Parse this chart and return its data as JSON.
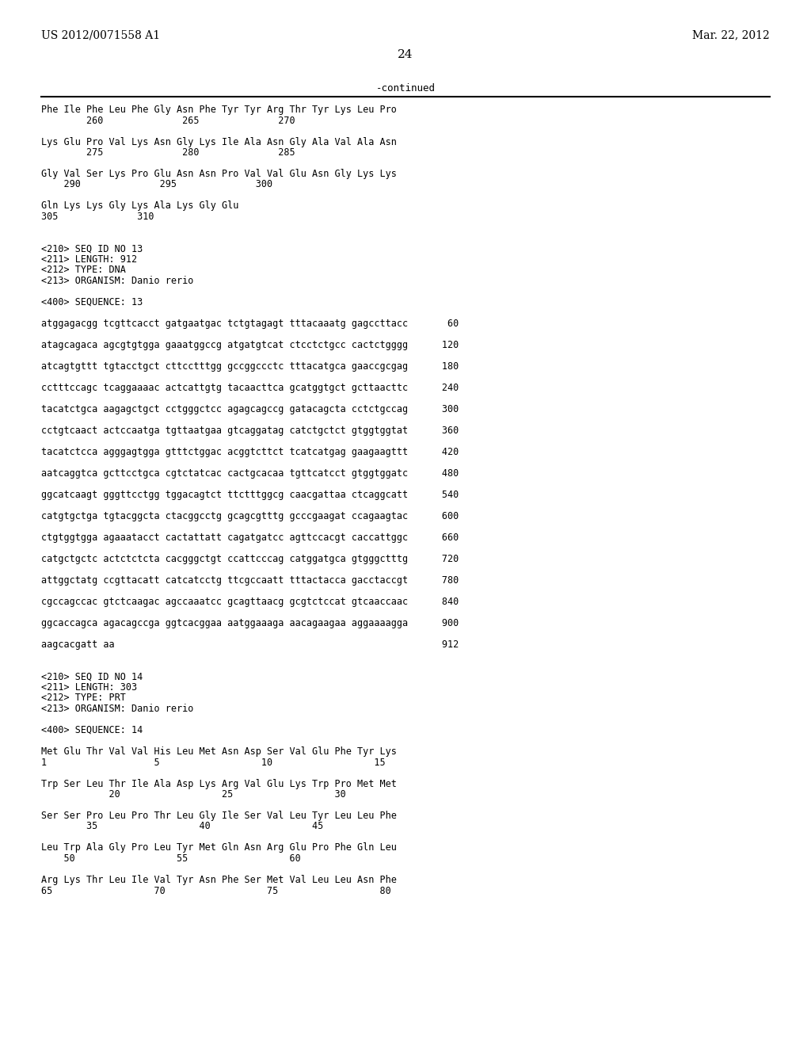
{
  "header_left": "US 2012/0071558 A1",
  "header_right": "Mar. 22, 2012",
  "page_number": "24",
  "continued_label": "-continued",
  "background_color": "#ffffff",
  "text_color": "#000000",
  "mono_font_size": 8.5,
  "content_lines": [
    "Phe Ile Phe Leu Phe Gly Asn Phe Tyr Tyr Arg Thr Tyr Lys Leu Pro",
    "        260              265              270",
    "",
    "Lys Glu Pro Val Lys Asn Gly Lys Ile Ala Asn Gly Ala Val Ala Asn",
    "        275              280              285",
    "",
    "Gly Val Ser Lys Pro Glu Asn Asn Pro Val Val Glu Asn Gly Lys Lys",
    "    290              295              300",
    "",
    "Gln Lys Lys Gly Lys Ala Lys Gly Glu",
    "305              310",
    "",
    "",
    "<210> SEQ ID NO 13",
    "<211> LENGTH: 912",
    "<212> TYPE: DNA",
    "<213> ORGANISM: Danio rerio",
    "",
    "<400> SEQUENCE: 13",
    "",
    "atggagacgg tcgttcacct gatgaatgac tctgtagagt tttacaaatg gagccttacc       60",
    "",
    "atagcagaca agcgtgtgga gaaatggccg atgatgtcat ctcctctgcc cactctgggg      120",
    "",
    "atcagtgttt tgtacctgct cttcctttgg gccggccctc tttacatgca gaaccgcgag      180",
    "",
    "cctttccagc tcaggaaaac actcattgtg tacaacttca gcatggtgct gcttaacttc      240",
    "",
    "tacatctgca aagagctgct cctgggctcc agagcagccg gatacagcta cctctgccag      300",
    "",
    "cctgtcaact actccaatga tgttaatgaa gtcaggatag catctgctct gtggtggtat      360",
    "",
    "tacatctcca agggagtgga gtttctggac acggtcttct tcatcatgag gaagaagttt      420",
    "",
    "aatcaggtca gcttcctgca cgtctatcac cactgcacaa tgttcatcct gtggtggatc      480",
    "",
    "ggcatcaagt gggttcctgg tggacagtct ttctttggcg caacgattaa ctcaggcatt      540",
    "",
    "catgtgctga tgtacggcta ctacggcctg gcagcgtttg gcccgaagat ccagaagtac      600",
    "",
    "ctgtggtgga agaaatacct cactattatt cagatgatcc agttccacgt caccattggc      660",
    "",
    "catgctgctc actctctcta cacgggctgt ccattcccag catggatgca gtgggctttg      720",
    "",
    "attggctatg ccgttacatt catcatcctg ttcgccaatt tttactacca gacctaccgt      780",
    "",
    "cgccagccac gtctcaagac agccaaatcc gcagttaacg gcgtctccat gtcaaccaac      840",
    "",
    "ggcaccagca agacagccga ggtcacggaa aatggaaaga aacagaagaa aggaaaagga      900",
    "",
    "aagcacgatt aa                                                          912",
    "",
    "",
    "<210> SEQ ID NO 14",
    "<211> LENGTH: 303",
    "<212> TYPE: PRT",
    "<213> ORGANISM: Danio rerio",
    "",
    "<400> SEQUENCE: 14",
    "",
    "Met Glu Thr Val Val His Leu Met Asn Asp Ser Val Glu Phe Tyr Lys",
    "1                   5                  10                  15",
    "",
    "Trp Ser Leu Thr Ile Ala Asp Lys Arg Val Glu Lys Trp Pro Met Met",
    "            20                  25                  30",
    "",
    "Ser Ser Pro Leu Pro Thr Leu Gly Ile Ser Val Leu Tyr Leu Leu Phe",
    "        35                  40                  45",
    "",
    "Leu Trp Ala Gly Pro Leu Tyr Met Gln Asn Arg Glu Pro Phe Gln Leu",
    "    50                  55                  60",
    "",
    "Arg Lys Thr Leu Ile Val Tyr Asn Phe Ser Met Val Leu Leu Asn Phe",
    "65                  70                  75                  80"
  ]
}
